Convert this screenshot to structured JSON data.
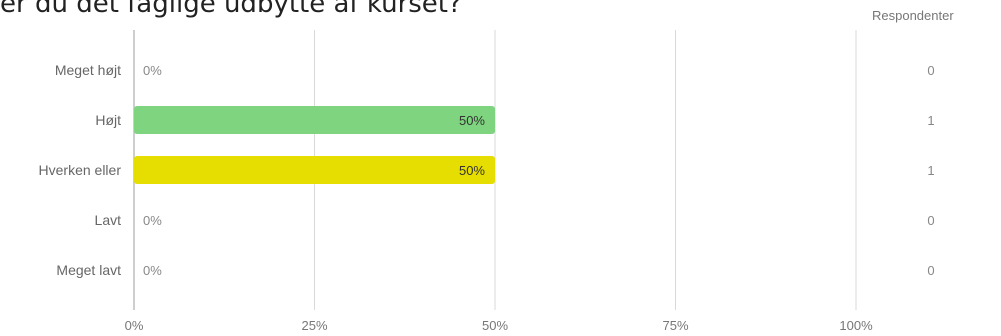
{
  "question": "er du det faglige udbytte af kurset?",
  "respondents_header": "Respondenter",
  "colors": {
    "grid": "#d9d9d9",
    "axis": "#bdbdbd",
    "bar_high": "#7fd47f",
    "bar_neutral": "#e6de00",
    "bar_default": "#cccccc"
  },
  "chart_data": {
    "type": "bar",
    "orientation": "horizontal",
    "categories": [
      "Meget højt",
      "Højt",
      "Hverken eller",
      "Lavt",
      "Meget lavt"
    ],
    "values": [
      0,
      50,
      50,
      0,
      0
    ],
    "value_labels": [
      "0%",
      "50%",
      "50%",
      "0%",
      "0%"
    ],
    "respondents": [
      "0",
      "1",
      "1",
      "0",
      "0"
    ],
    "bar_colors": [
      "#cccccc",
      "#7fd47f",
      "#e6de00",
      "#cccccc",
      "#cccccc"
    ],
    "xlim": [
      0,
      100
    ],
    "x_ticks": [
      0,
      25,
      50,
      75,
      100
    ],
    "x_tick_labels": [
      "0%",
      "25%",
      "50%",
      "75%",
      "100%"
    ],
    "grid": true,
    "legend": "none"
  }
}
